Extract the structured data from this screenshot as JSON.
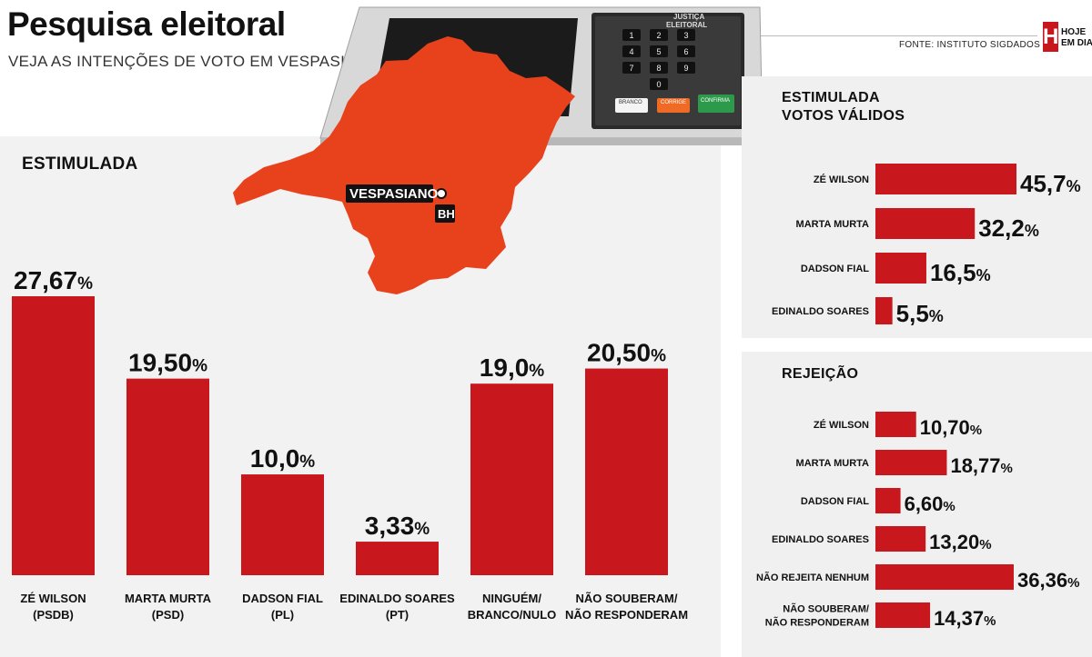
{
  "header": {
    "title": "Pesquisa eleitoral",
    "subtitle": "VEJA AS INTENÇÕES DE VOTO EM VESPASIANO",
    "source": "FONTE: INSTITUTO SIGDADOS",
    "logo_letter": "H",
    "logo_line1": "HOJE",
    "logo_line2": "EM DIA"
  },
  "illustration": {
    "city_label": "VESPASIANO",
    "bh_label": "BH",
    "machine_label_line1": "JUSTIÇA",
    "machine_label_line2": "ELEITORAL",
    "keys": [
      "1",
      "2",
      "3",
      "4",
      "5",
      "6",
      "7",
      "8",
      "9",
      "0"
    ],
    "branco_label": "BRANCO",
    "corrige_label": "CORRIGE",
    "confirma_label": "CONFIRMA",
    "map_color": "#e8421c"
  },
  "colors": {
    "bar": "#c8181e",
    "panel": "#f2f2f2"
  },
  "chart_data": [
    {
      "type": "bar",
      "title": "ESTIMULADA",
      "categories": [
        [
          "ZÉ WILSON",
          "(PSDB)"
        ],
        [
          "MARTA MURTA",
          "(PSD)"
        ],
        [
          "DADSON FIAL",
          "(PL)"
        ],
        [
          "EDINALDO SOARES",
          "(PT)"
        ],
        [
          "NINGUÉM/",
          "BRANCO/NULO"
        ],
        [
          "NÃO SOUBERAM/",
          "NÃO RESPONDERAM"
        ]
      ],
      "values": [
        27.67,
        19.5,
        10.0,
        3.33,
        19.0,
        20.5
      ],
      "value_labels": [
        "27,67",
        "19,50",
        "10,0",
        "3,33",
        "19,0",
        "20,50"
      ],
      "unit": "%",
      "orientation": "vertical",
      "ylim": [
        0,
        30
      ]
    },
    {
      "type": "bar",
      "title": [
        "ESTIMULADA",
        "VOTOS VÁLIDOS"
      ],
      "categories": [
        "ZÉ WILSON",
        "MARTA MURTA",
        "DADSON FIAL",
        "EDINALDO SOARES"
      ],
      "values": [
        45.7,
        32.2,
        16.5,
        5.5
      ],
      "value_labels": [
        "45,7",
        "32,2",
        "16,5",
        "5,5"
      ],
      "unit": "%",
      "orientation": "horizontal",
      "xlim": [
        0,
        50
      ]
    },
    {
      "type": "bar",
      "title": "REJEIÇÃO",
      "categories": [
        [
          "ZÉ WILSON"
        ],
        [
          "MARTA MURTA"
        ],
        [
          "DADSON FIAL"
        ],
        [
          "EDINALDO SOARES"
        ],
        [
          "NÃO REJEITA NENHUM"
        ],
        [
          "NÃO SOUBERAM/",
          "NÃO RESPONDERAM"
        ]
      ],
      "values": [
        10.7,
        18.77,
        6.6,
        13.2,
        36.36,
        14.37
      ],
      "value_labels": [
        "10,70",
        "18,77",
        "6,60",
        "13,20",
        "36,36",
        "14,37"
      ],
      "unit": "%",
      "orientation": "horizontal",
      "xlim": [
        0,
        40
      ]
    }
  ]
}
